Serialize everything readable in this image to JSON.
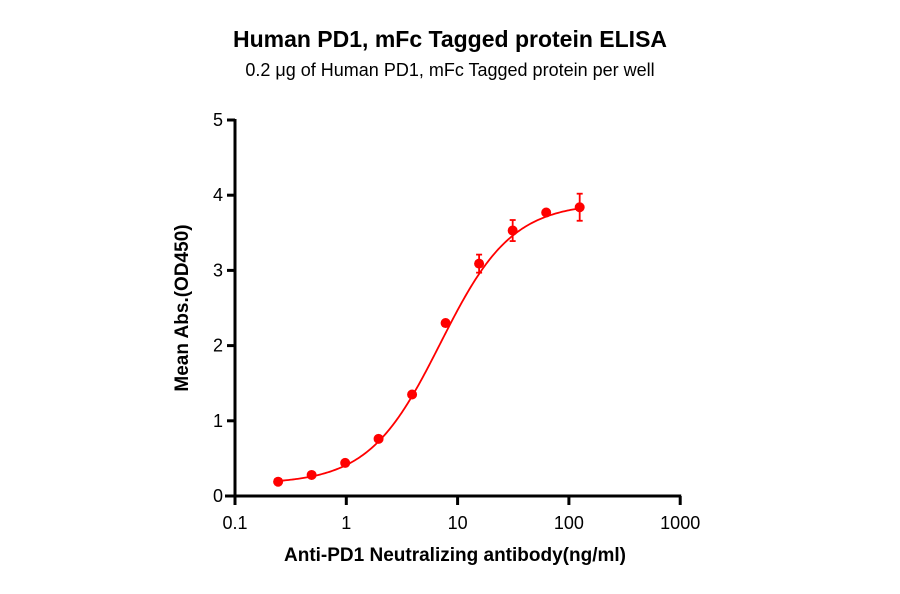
{
  "chart_data": {
    "type": "scatter",
    "title": "Human PD1,  mFc Tagged protein ELISA",
    "subtitle": "0.2 μg of Human PD1, mFc Tagged protein per well",
    "xlabel": "Anti-PD1 Neutralizing antibody(ng/ml)",
    "ylabel": "Mean Abs.(OD450)",
    "xscale": "log",
    "xlim": [
      0.1,
      1000
    ],
    "ylim": [
      0,
      5
    ],
    "xticks": [
      "0.1",
      "1",
      "10",
      "100",
      "1000"
    ],
    "yticks": [
      "0",
      "1",
      "2",
      "3",
      "4",
      "5"
    ],
    "grid": false,
    "legend": null,
    "fit": "sigmoidal 4PL curve",
    "series": [
      {
        "name": "Human PD1, mFc Tagged protein",
        "color": "#ff0000",
        "x": [
          0.244,
          0.488,
          0.977,
          1.95,
          3.9,
          7.8,
          15.6,
          31.25,
          62.5,
          125
        ],
        "values": [
          0.19,
          0.28,
          0.44,
          0.76,
          1.35,
          2.3,
          3.09,
          3.53,
          3.77,
          3.84
        ],
        "error": [
          0.01,
          0.01,
          0.01,
          0.02,
          0.02,
          0.03,
          0.12,
          0.14,
          0.03,
          0.18
        ]
      }
    ]
  }
}
